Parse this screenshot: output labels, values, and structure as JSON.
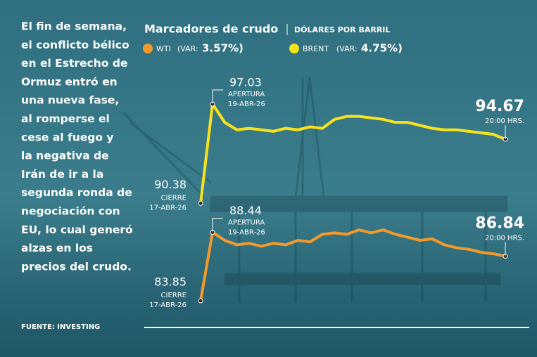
{
  "chart_data": {
    "type": "line",
    "title": "Marcadores de crudo",
    "subtitle": "DÓLARES POR BARRIL",
    "description": [
      "El fin de semana,",
      "el conflicto bélico",
      "en el Estrecho de",
      "Ormuz entró en",
      "una nueva fase,",
      "al romperse el",
      "cese al fuego y",
      "la negativa de",
      "Irán de ir a la",
      "segunda ronda de",
      "negociación con",
      "EU, lo cual generó",
      "alzas en los",
      "precios del crudo."
    ],
    "source": "FUENTE:  INVESTING",
    "series": [
      {
        "name": "WTI",
        "change_text": "(VAR:",
        "change": "3.57%)",
        "color": "#f39a2a",
        "values": [
          83.85,
          88.44,
          87.9,
          87.6,
          87.7,
          87.5,
          87.7,
          87.6,
          87.9,
          87.8,
          88.3,
          88.4,
          88.3,
          88.6,
          88.4,
          88.6,
          88.3,
          88.1,
          87.9,
          88.0,
          87.6,
          87.4,
          87.3,
          87.1,
          87.0,
          86.84
        ],
        "close_note": [
          "CIERRE",
          "17-ABR-26"
        ],
        "open_note": [
          "APERTURA",
          "19-ABR-26"
        ],
        "last_note": "20:00 HRS."
      },
      {
        "name": "BRENT",
        "change_text": "(VAR:",
        "change": "4.75%)",
        "color": "#f7e21c",
        "values": [
          90.38,
          97.03,
          95.8,
          95.3,
          95.4,
          95.3,
          95.2,
          95.4,
          95.3,
          95.5,
          95.4,
          96.0,
          96.2,
          96.2,
          96.1,
          96.0,
          95.8,
          95.8,
          95.6,
          95.4,
          95.3,
          95.3,
          95.2,
          95.1,
          95.0,
          94.67
        ],
        "close_note": [
          "CIERRE",
          "17-ABR-26"
        ],
        "open_note": [
          "APERTURA",
          "19-ABR-26"
        ],
        "last_note": "20:00 HRS."
      }
    ]
  }
}
